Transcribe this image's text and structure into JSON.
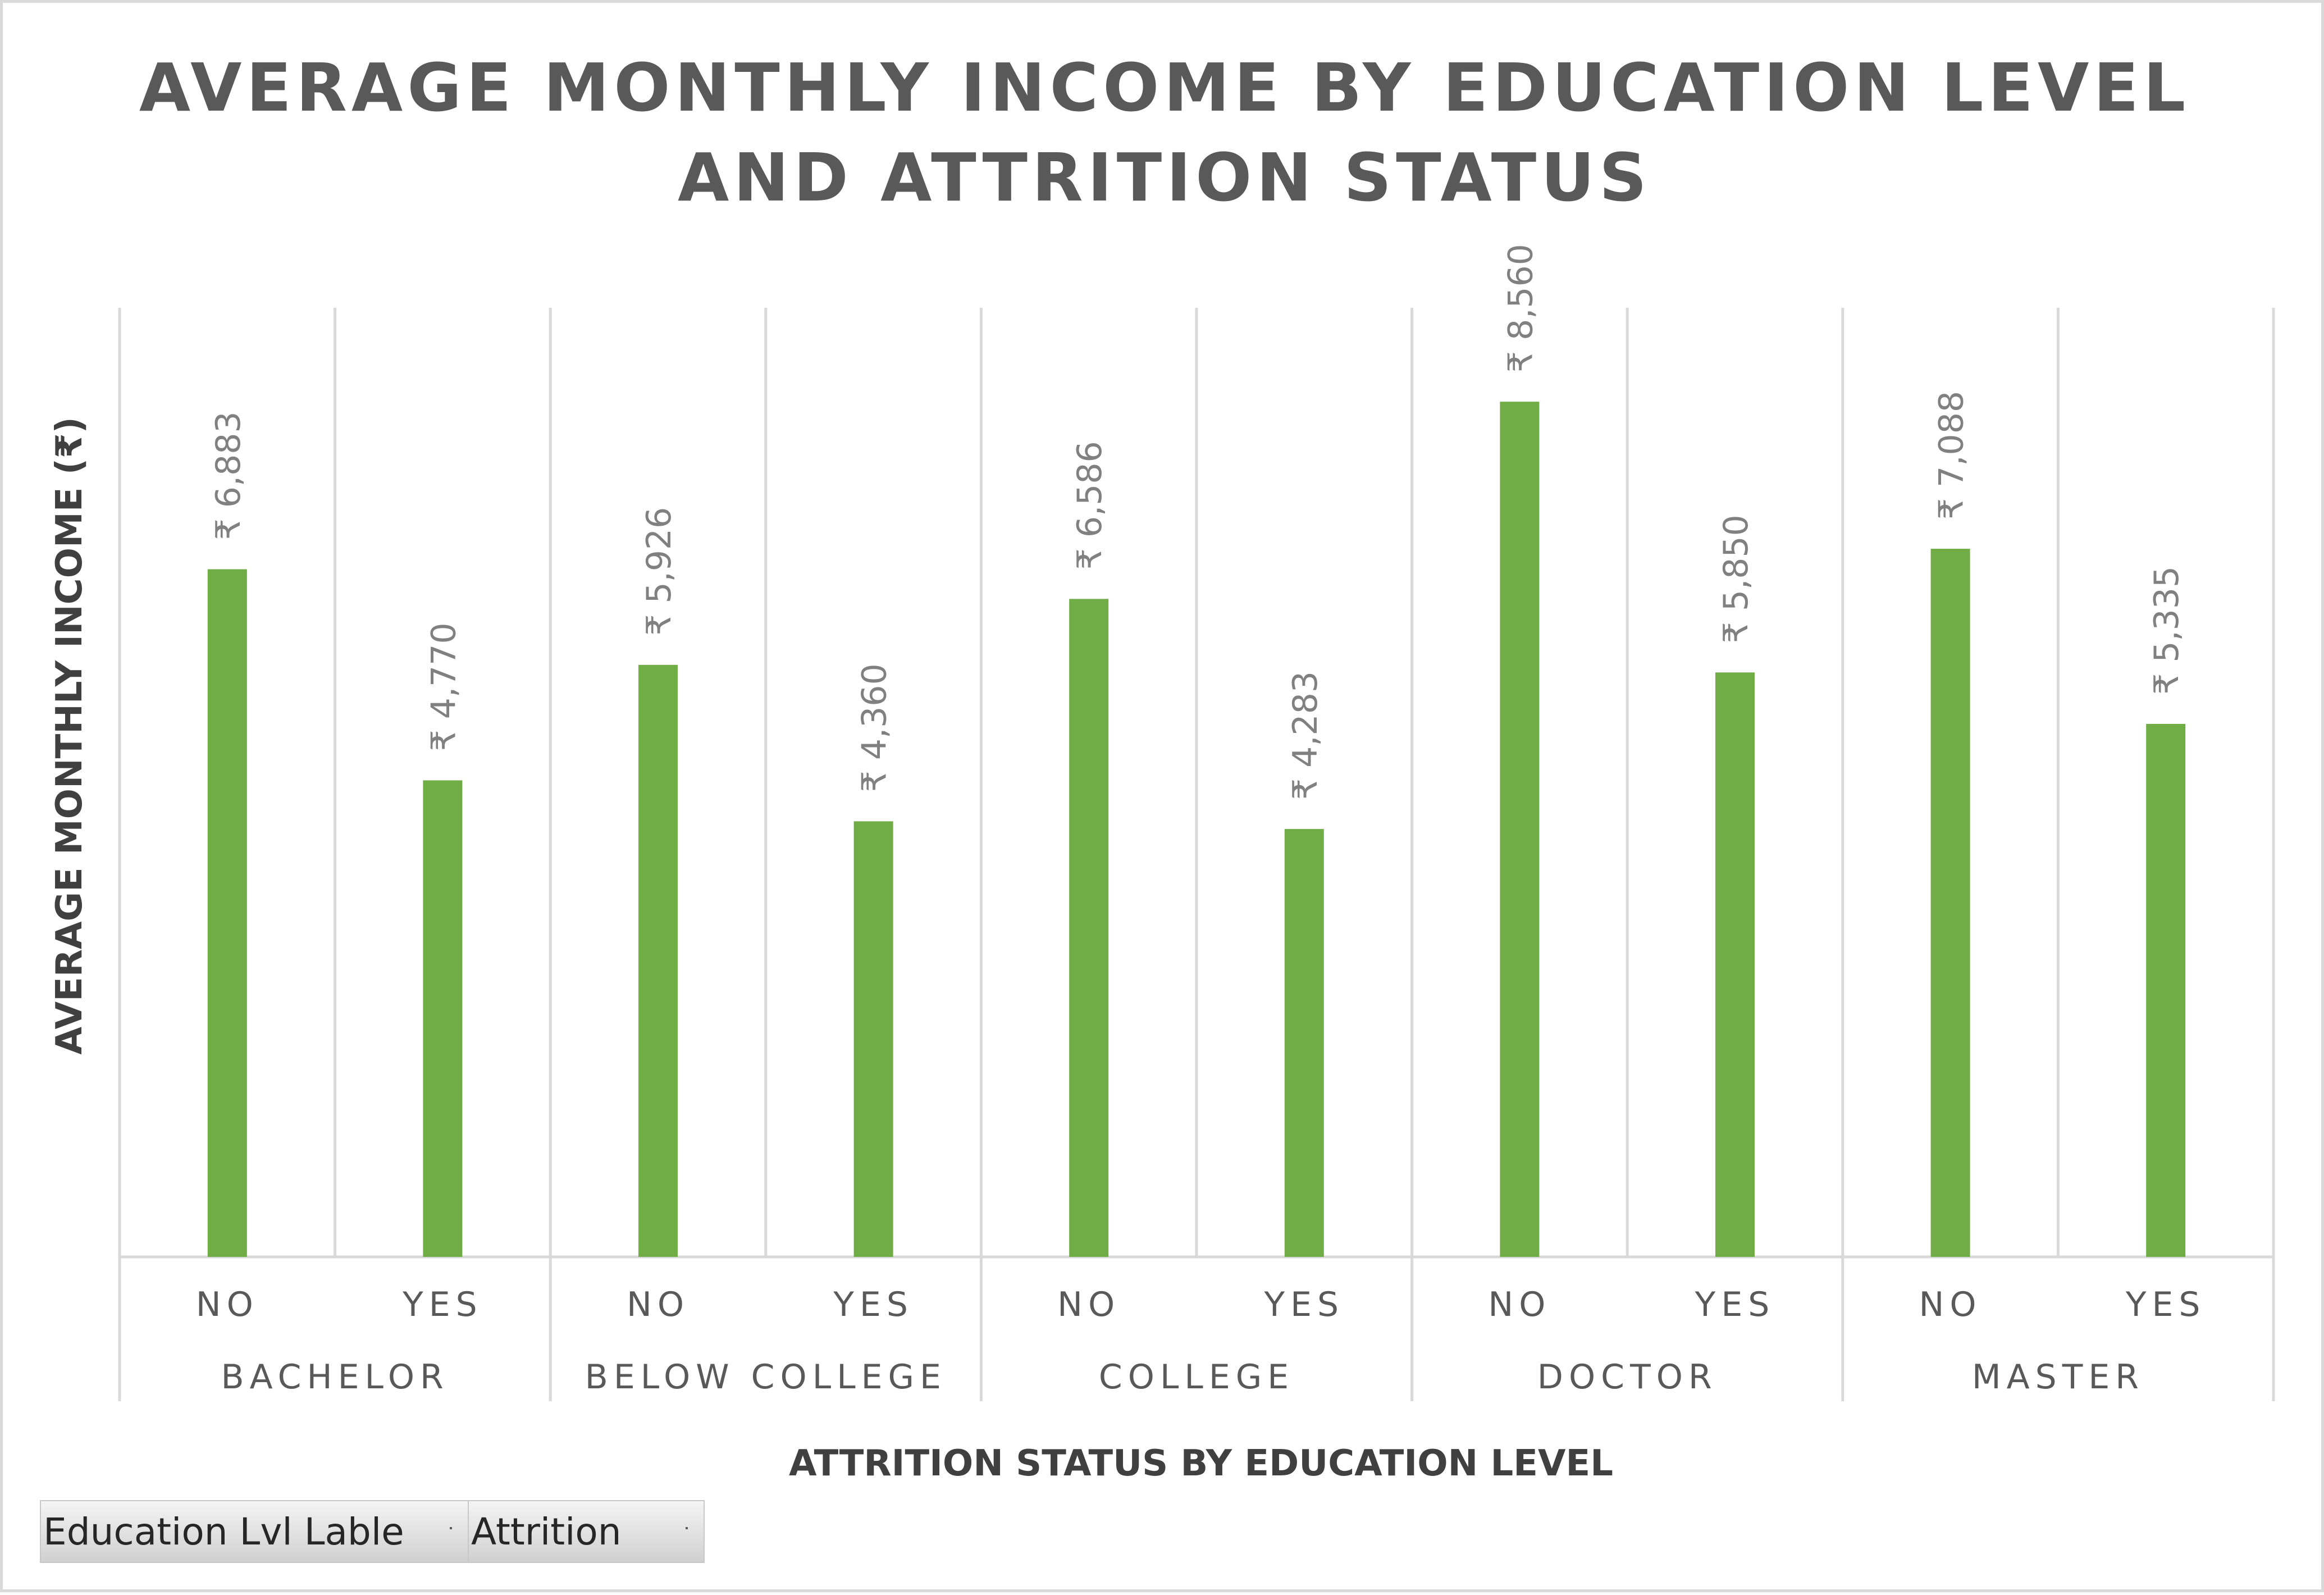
{
  "chart_data": {
    "type": "bar",
    "title_lines": [
      "AVERAGE MONTHLY INCOME BY EDUCATION LEVEL",
      "AND ATTRITION STATUS"
    ],
    "ylabel": "AVERAGE MONTHLY INCOME (₹)",
    "xlabel": "ATTRITION STATUS BY EDUCATION LEVEL",
    "ylim": [
      0,
      9500
    ],
    "groups": [
      {
        "label": "BACHELOR",
        "bars": [
          {
            "category": "NO",
            "value": 6883,
            "label": "₹ 6,883"
          },
          {
            "category": "YES",
            "value": 4770,
            "label": "₹ 4,770"
          }
        ]
      },
      {
        "label": "BELOW COLLEGE",
        "bars": [
          {
            "category": "NO",
            "value": 5926,
            "label": "₹ 5,926"
          },
          {
            "category": "YES",
            "value": 4360,
            "label": "₹ 4,360"
          }
        ]
      },
      {
        "label": "COLLEGE",
        "bars": [
          {
            "category": "NO",
            "value": 6586,
            "label": "₹ 6,586"
          },
          {
            "category": "YES",
            "value": 4283,
            "label": "₹ 4,283"
          }
        ]
      },
      {
        "label": "DOCTOR",
        "bars": [
          {
            "category": "NO",
            "value": 8560,
            "label": "₹ 8,560"
          },
          {
            "category": "YES",
            "value": 5850,
            "label": "₹ 5,850"
          }
        ]
      },
      {
        "label": "MASTER",
        "bars": [
          {
            "category": "NO",
            "value": 7088,
            "label": "₹ 7,088"
          },
          {
            "category": "YES",
            "value": 5335,
            "label": "₹ 5,335"
          }
        ]
      }
    ],
    "bar_color": "#70ad47",
    "grid": true,
    "legend": "none"
  },
  "filters": [
    {
      "label": "Education Lvl Lable"
    },
    {
      "label": "Attrition"
    }
  ]
}
